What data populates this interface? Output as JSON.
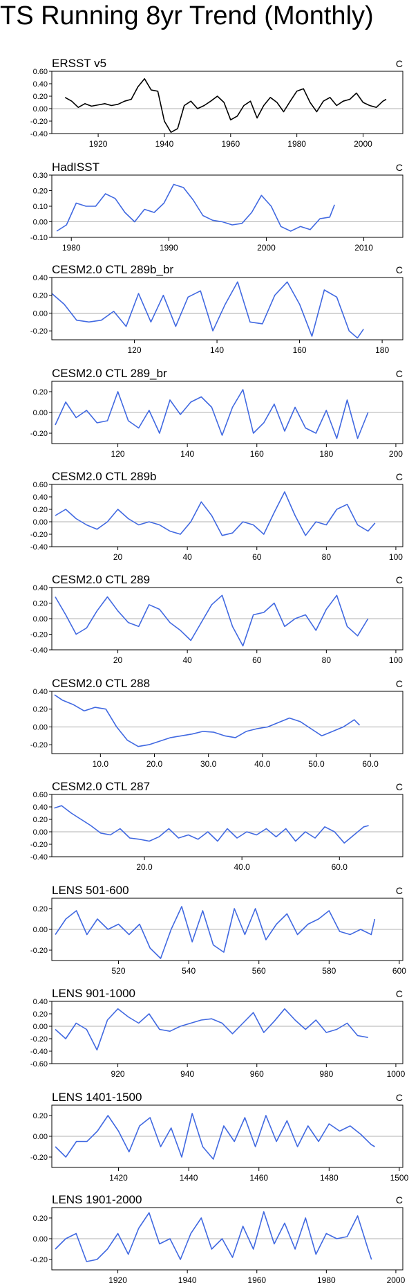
{
  "page": {
    "title": "TS Running 8yr Trend (Monthly)"
  },
  "colors": {
    "obs_line": "#000000",
    "model_line": "#4169e1",
    "zero_line": "#999999",
    "frame": "#000000"
  },
  "chart_data": [
    {
      "type": "line",
      "title": "ERSST v5",
      "unit": "C",
      "color": "obs",
      "xlim": [
        1906,
        2012
      ],
      "ylim": [
        -0.4,
        0.6
      ],
      "xticks": [
        1920,
        1940,
        1960,
        1980,
        2000
      ],
      "xtick_labels": [
        "1920",
        "1940",
        "1960",
        "1980",
        "2000"
      ],
      "yticks": [
        -0.4,
        -0.2,
        0.0,
        0.2,
        0.4,
        0.6
      ],
      "ytick_labels": [
        "-0.40",
        "-0.20",
        "0.00",
        "0.20",
        "0.40",
        "0.60"
      ],
      "x": [
        1910,
        1912,
        1914,
        1916,
        1918,
        1920,
        1922,
        1924,
        1926,
        1928,
        1930,
        1932,
        1934,
        1936,
        1938,
        1940,
        1942,
        1944,
        1946,
        1948,
        1950,
        1952,
        1954,
        1956,
        1958,
        1960,
        1962,
        1964,
        1966,
        1968,
        1970,
        1972,
        1974,
        1976,
        1978,
        1980,
        1982,
        1984,
        1986,
        1988,
        1990,
        1992,
        1994,
        1996,
        1998,
        2000,
        2002,
        2004,
        2006,
        2007
      ],
      "y": [
        0.18,
        0.12,
        0.02,
        0.08,
        0.04,
        0.06,
        0.08,
        0.05,
        0.07,
        0.12,
        0.15,
        0.35,
        0.48,
        0.3,
        0.28,
        -0.2,
        -0.38,
        -0.32,
        0.05,
        0.12,
        0.0,
        0.05,
        0.12,
        0.2,
        0.1,
        -0.18,
        -0.12,
        0.05,
        0.12,
        -0.15,
        0.05,
        0.18,
        0.1,
        -0.05,
        0.12,
        0.28,
        0.32,
        0.1,
        -0.05,
        0.12,
        0.18,
        0.05,
        0.12,
        0.15,
        0.25,
        0.1,
        0.05,
        0.02,
        0.12,
        0.15
      ]
    },
    {
      "type": "line",
      "title": "HadISST",
      "unit": "C",
      "color": "model",
      "xlim": [
        1978,
        2014
      ],
      "ylim": [
        -0.1,
        0.3
      ],
      "xticks": [
        1980,
        1990,
        2000,
        2010
      ],
      "xtick_labels": [
        "1980",
        "1990",
        "2000",
        "2010"
      ],
      "yticks": [
        -0.1,
        0.0,
        0.1,
        0.2,
        0.3
      ],
      "ytick_labels": [
        "-0.10",
        "0.00",
        "0.10",
        "0.20",
        "0.30"
      ],
      "x": [
        1978.5,
        1979.5,
        1980.5,
        1981.5,
        1982.5,
        1983.5,
        1984.5,
        1985.5,
        1986.5,
        1987.5,
        1988.5,
        1989.5,
        1990.5,
        1991.5,
        1992.5,
        1993.5,
        1994.5,
        1995.5,
        1996.5,
        1997.5,
        1998.5,
        1999.5,
        2000.5,
        2001.5,
        2002.5,
        2003.5,
        2004.5,
        2005.5,
        2006.5,
        2007
      ],
      "y": [
        -0.06,
        -0.02,
        0.12,
        0.1,
        0.1,
        0.18,
        0.15,
        0.06,
        0.0,
        0.08,
        0.06,
        0.12,
        0.24,
        0.22,
        0.14,
        0.04,
        0.01,
        0.0,
        -0.02,
        -0.01,
        0.06,
        0.17,
        0.1,
        -0.03,
        -0.06,
        -0.03,
        -0.05,
        0.02,
        0.03,
        0.11
      ]
    },
    {
      "type": "line",
      "title": "CESM2.0 CTL 289b_br",
      "unit": "C",
      "color": "model",
      "xlim": [
        100,
        185
      ],
      "ylim": [
        -0.3,
        0.4
      ],
      "xticks": [
        120,
        140,
        160,
        180
      ],
      "xtick_labels": [
        "120",
        "140",
        "160",
        "180"
      ],
      "yticks": [
        -0.2,
        0.0,
        0.2,
        0.4
      ],
      "ytick_labels": [
        "-0.20",
        "0.00",
        "0.20",
        "0.40"
      ],
      "x": [
        100,
        103,
        106,
        109,
        112,
        115,
        118,
        121,
        124,
        127,
        130,
        133,
        136,
        139,
        142,
        145,
        148,
        151,
        154,
        157,
        160,
        163,
        166,
        169,
        172,
        174,
        175.5
      ],
      "y": [
        0.22,
        0.1,
        -0.08,
        -0.1,
        -0.08,
        0.02,
        -0.15,
        0.22,
        -0.1,
        0.2,
        -0.15,
        0.18,
        0.25,
        -0.2,
        0.1,
        0.35,
        -0.1,
        -0.12,
        0.2,
        0.35,
        0.1,
        -0.26,
        0.26,
        0.18,
        -0.2,
        -0.28,
        -0.18
      ]
    },
    {
      "type": "line",
      "title": "CESM2.0 CTL 289_br",
      "unit": "C",
      "color": "model",
      "xlim": [
        101,
        202
      ],
      "ylim": [
        -0.3,
        0.3
      ],
      "xticks": [
        120,
        140,
        160,
        180,
        200
      ],
      "xtick_labels": [
        "120",
        "140",
        "160",
        "180",
        "200"
      ],
      "yticks": [
        -0.2,
        0.0,
        0.2
      ],
      "ytick_labels": [
        "-0.20",
        "0.00",
        "0.20"
      ],
      "x": [
        102,
        105,
        108,
        111,
        114,
        117,
        120,
        123,
        126,
        129,
        132,
        135,
        138,
        141,
        144,
        147,
        150,
        153,
        156,
        159,
        162,
        165,
        168,
        171,
        174,
        177,
        180,
        183,
        186,
        189,
        192
      ],
      "y": [
        -0.12,
        0.1,
        -0.05,
        0.02,
        -0.1,
        -0.08,
        0.2,
        -0.08,
        -0.15,
        0.02,
        -0.2,
        0.12,
        -0.02,
        0.1,
        0.15,
        0.05,
        -0.22,
        0.05,
        0.22,
        -0.2,
        -0.1,
        0.08,
        -0.18,
        0.05,
        -0.15,
        -0.2,
        0.02,
        -0.25,
        0.12,
        -0.25,
        0.0
      ]
    },
    {
      "type": "line",
      "title": "CESM2.0 CTL 289b",
      "unit": "C",
      "color": "model",
      "xlim": [
        1,
        102
      ],
      "ylim": [
        -0.4,
        0.6
      ],
      "xticks": [
        20,
        40,
        60,
        80,
        100
      ],
      "xtick_labels": [
        "20",
        "40",
        "60",
        "80",
        "100"
      ],
      "yticks": [
        -0.4,
        -0.2,
        0.0,
        0.2,
        0.4,
        0.6
      ],
      "ytick_labels": [
        "-0.40",
        "-0.20",
        "0.00",
        "0.20",
        "0.40",
        "0.60"
      ],
      "x": [
        2,
        5,
        8,
        11,
        14,
        17,
        20,
        23,
        26,
        29,
        32,
        35,
        38,
        41,
        44,
        47,
        50,
        53,
        56,
        59,
        62,
        65,
        68,
        71,
        74,
        77,
        80,
        83,
        86,
        89,
        92,
        94
      ],
      "y": [
        0.1,
        0.2,
        0.05,
        -0.05,
        -0.12,
        0.0,
        0.2,
        0.05,
        -0.05,
        0.0,
        -0.05,
        -0.15,
        -0.2,
        0.0,
        0.32,
        0.1,
        -0.22,
        -0.18,
        0.0,
        -0.05,
        -0.2,
        0.15,
        0.48,
        0.1,
        -0.22,
        0.0,
        -0.05,
        0.2,
        0.28,
        -0.05,
        -0.15,
        -0.02
      ]
    },
    {
      "type": "line",
      "title": "CESM2.0 CTL 289",
      "unit": "C",
      "color": "model",
      "xlim": [
        1,
        102
      ],
      "ylim": [
        -0.4,
        0.4
      ],
      "xticks": [
        20,
        40,
        60,
        80,
        100
      ],
      "xtick_labels": [
        "20",
        "40",
        "60",
        "80",
        "100"
      ],
      "yticks": [
        -0.4,
        -0.2,
        0.0,
        0.2,
        0.4
      ],
      "ytick_labels": [
        "-0.40",
        "-0.20",
        "0.00",
        "0.20",
        "0.40"
      ],
      "x": [
        2,
        5,
        8,
        11,
        14,
        17,
        20,
        23,
        26,
        29,
        32,
        35,
        38,
        41,
        44,
        47,
        50,
        53,
        56,
        59,
        62,
        65,
        68,
        71,
        74,
        77,
        80,
        83,
        86,
        89,
        92
      ],
      "y": [
        0.28,
        0.05,
        -0.2,
        -0.12,
        0.1,
        0.28,
        0.1,
        -0.05,
        -0.1,
        0.18,
        0.12,
        -0.05,
        -0.15,
        -0.28,
        -0.05,
        0.18,
        0.3,
        -0.1,
        -0.35,
        0.05,
        0.08,
        0.2,
        -0.1,
        0.0,
        0.05,
        -0.15,
        0.12,
        0.3,
        -0.1,
        -0.22,
        0.0
      ]
    },
    {
      "type": "line",
      "title": "CESM2.0 CTL 288",
      "unit": "C",
      "color": "model",
      "xlim": [
        1,
        66
      ],
      "ylim": [
        -0.3,
        0.4
      ],
      "xticks": [
        10,
        20,
        30,
        40,
        50,
        60
      ],
      "xtick_labels": [
        "10.0",
        "20.0",
        "30.0",
        "40.0",
        "50.0",
        "60.0"
      ],
      "yticks": [
        -0.2,
        0.0,
        0.2,
        0.4
      ],
      "ytick_labels": [
        "-0.20",
        "0.00",
        "0.20",
        "0.40"
      ],
      "x": [
        1.5,
        3,
        5,
        7,
        9,
        11,
        13,
        15,
        17,
        19,
        21,
        23,
        25,
        27,
        29,
        31,
        33,
        35,
        37,
        39,
        41,
        43,
        45,
        47,
        49,
        51,
        53,
        55,
        57,
        58
      ],
      "y": [
        0.36,
        0.3,
        0.25,
        0.18,
        0.22,
        0.2,
        0.0,
        -0.15,
        -0.22,
        -0.2,
        -0.16,
        -0.12,
        -0.1,
        -0.08,
        -0.05,
        -0.06,
        -0.1,
        -0.12,
        -0.05,
        -0.02,
        0.0,
        0.05,
        0.1,
        0.06,
        -0.02,
        -0.1,
        -0.05,
        0.0,
        0.08,
        0.02
      ]
    },
    {
      "type": "line",
      "title": "CESM2.0 CTL 287",
      "unit": "C",
      "color": "model",
      "xlim": [
        1,
        73
      ],
      "ylim": [
        -0.4,
        0.6
      ],
      "xticks": [
        20,
        40,
        60
      ],
      "xtick_labels": [
        "20.0",
        "40.0",
        "60.0"
      ],
      "yticks": [
        -0.4,
        -0.2,
        0.0,
        0.2,
        0.4,
        0.6
      ],
      "ytick_labels": [
        "-0.40",
        "-0.20",
        "0.00",
        "0.20",
        "0.40",
        "0.60"
      ],
      "x": [
        1.5,
        3,
        5,
        7,
        9,
        11,
        13,
        15,
        17,
        19,
        21,
        23,
        25,
        27,
        29,
        31,
        33,
        35,
        37,
        39,
        41,
        43,
        45,
        47,
        49,
        51,
        53,
        55,
        57,
        59,
        61,
        63,
        65,
        66
      ],
      "y": [
        0.38,
        0.42,
        0.3,
        0.2,
        0.1,
        -0.02,
        -0.05,
        0.05,
        -0.1,
        -0.12,
        -0.15,
        -0.08,
        0.05,
        -0.1,
        -0.05,
        -0.12,
        0.0,
        -0.15,
        0.05,
        -0.1,
        0.0,
        -0.05,
        0.05,
        -0.08,
        0.05,
        -0.15,
        0.0,
        -0.1,
        0.08,
        0.0,
        -0.18,
        -0.05,
        0.08,
        0.1
      ]
    },
    {
      "type": "line",
      "title": "LENS 501-600",
      "unit": "C",
      "color": "model",
      "xlim": [
        501,
        601
      ],
      "ylim": [
        -0.3,
        0.3
      ],
      "xticks": [
        520,
        540,
        560,
        580,
        600
      ],
      "xtick_labels": [
        "520",
        "540",
        "560",
        "580",
        "600"
      ],
      "yticks": [
        -0.2,
        0.0,
        0.2
      ],
      "ytick_labels": [
        "-0.20",
        "0.00",
        "0.20"
      ],
      "x": [
        502,
        505,
        508,
        511,
        514,
        517,
        520,
        523,
        526,
        529,
        532,
        535,
        538,
        541,
        544,
        547,
        550,
        553,
        556,
        559,
        562,
        565,
        568,
        571,
        574,
        577,
        580,
        583,
        586,
        589,
        592,
        593
      ],
      "y": [
        -0.05,
        0.1,
        0.18,
        -0.05,
        0.1,
        0.0,
        0.05,
        -0.05,
        0.05,
        -0.18,
        -0.28,
        0.0,
        0.22,
        -0.12,
        0.18,
        -0.15,
        -0.22,
        0.2,
        -0.05,
        0.2,
        -0.1,
        0.05,
        0.15,
        -0.05,
        0.05,
        0.1,
        0.18,
        -0.02,
        -0.05,
        0.0,
        -0.05,
        0.1
      ]
    },
    {
      "type": "line",
      "title": "LENS 901-1000",
      "unit": "C",
      "color": "model",
      "xlim": [
        901,
        1002
      ],
      "ylim": [
        -0.6,
        0.4
      ],
      "xticks": [
        920,
        940,
        960,
        980,
        1000
      ],
      "xtick_labels": [
        "920",
        "940",
        "960",
        "980",
        "1000"
      ],
      "yticks": [
        -0.6,
        -0.4,
        -0.2,
        0.0,
        0.2,
        0.4
      ],
      "ytick_labels": [
        "-0.60",
        "-0.40",
        "-0.20",
        "0.00",
        "0.20",
        "0.40"
      ],
      "x": [
        902,
        905,
        908,
        911,
        914,
        917,
        920,
        923,
        926,
        929,
        932,
        935,
        938,
        941,
        944,
        947,
        950,
        953,
        956,
        959,
        962,
        965,
        968,
        971,
        974,
        977,
        980,
        983,
        986,
        989,
        992
      ],
      "y": [
        -0.05,
        -0.2,
        0.05,
        -0.05,
        -0.38,
        0.1,
        0.28,
        0.15,
        0.05,
        0.2,
        -0.05,
        -0.08,
        0.0,
        0.05,
        0.1,
        0.12,
        0.05,
        -0.12,
        0.05,
        0.22,
        -0.1,
        0.08,
        0.28,
        0.1,
        -0.05,
        0.1,
        -0.1,
        -0.05,
        0.05,
        -0.15,
        -0.18
      ]
    },
    {
      "type": "line",
      "title": "LENS 1401-1500",
      "unit": "C",
      "color": "model",
      "xlim": [
        1401,
        1501
      ],
      "ylim": [
        -0.3,
        0.3
      ],
      "xticks": [
        1420,
        1440,
        1460,
        1480,
        1500
      ],
      "xtick_labels": [
        "1420",
        "1440",
        "1460",
        "1480",
        "1500"
      ],
      "yticks": [
        -0.2,
        0.0,
        0.2
      ],
      "ytick_labels": [
        "-0.20",
        "0.00",
        "0.20"
      ],
      "x": [
        1402,
        1405,
        1408,
        1411,
        1414,
        1417,
        1420,
        1423,
        1426,
        1429,
        1432,
        1435,
        1438,
        1441,
        1444,
        1447,
        1450,
        1453,
        1456,
        1459,
        1462,
        1465,
        1468,
        1471,
        1474,
        1477,
        1480,
        1483,
        1486,
        1489,
        1492,
        1493
      ],
      "y": [
        -0.1,
        -0.2,
        -0.05,
        -0.05,
        0.05,
        0.2,
        0.05,
        -0.15,
        0.1,
        0.18,
        -0.1,
        0.08,
        -0.2,
        0.22,
        -0.1,
        -0.22,
        0.1,
        -0.05,
        0.18,
        -0.1,
        0.2,
        -0.05,
        0.15,
        -0.1,
        0.1,
        -0.05,
        0.12,
        0.05,
        0.1,
        0.02,
        -0.08,
        -0.1
      ]
    },
    {
      "type": "line",
      "title": "LENS 1901-2000",
      "unit": "C",
      "color": "model",
      "xlim": [
        1901,
        2002
      ],
      "ylim": [
        -0.3,
        0.3
      ],
      "xticks": [
        1920,
        1940,
        1960,
        1980,
        2000
      ],
      "xtick_labels": [
        "1920",
        "1940",
        "1960",
        "1980",
        "2000"
      ],
      "yticks": [
        -0.2,
        0.0,
        0.2
      ],
      "ytick_labels": [
        "-0.20",
        "0.00",
        "0.20"
      ],
      "x": [
        1902,
        1905,
        1908,
        1911,
        1914,
        1917,
        1920,
        1923,
        1926,
        1929,
        1932,
        1935,
        1938,
        1941,
        1944,
        1947,
        1950,
        1953,
        1956,
        1959,
        1962,
        1965,
        1968,
        1971,
        1974,
        1977,
        1980,
        1983,
        1986,
        1989,
        1992,
        1993
      ],
      "y": [
        -0.1,
        0.0,
        0.05,
        -0.22,
        -0.2,
        -0.1,
        0.05,
        -0.15,
        0.1,
        0.25,
        -0.05,
        0.0,
        -0.2,
        0.05,
        0.2,
        -0.1,
        0.0,
        -0.18,
        0.12,
        -0.1,
        0.26,
        -0.05,
        0.15,
        -0.1,
        0.2,
        -0.15,
        0.05,
        0.0,
        0.02,
        0.22,
        -0.1,
        -0.2
      ]
    }
  ]
}
